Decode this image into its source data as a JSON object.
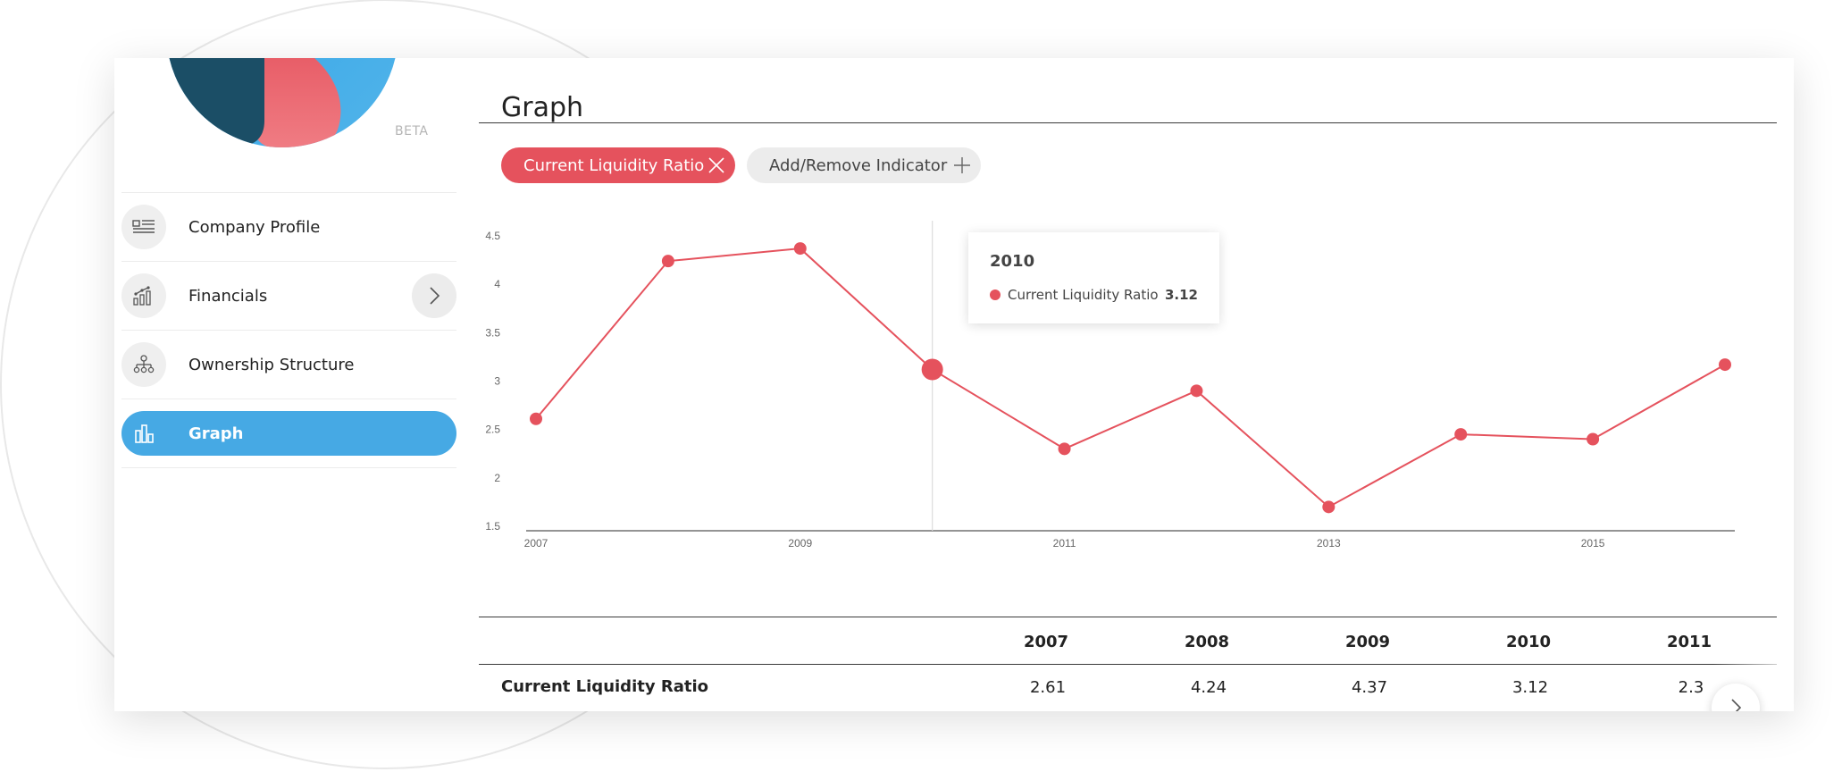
{
  "logo": {
    "badge": "BETA"
  },
  "nav": {
    "items": [
      {
        "label": "Company Profile",
        "icon": "profile-list-icon"
      },
      {
        "label": "Financials",
        "icon": "financials-chart-icon",
        "has_arrow": true
      },
      {
        "label": "Ownership Structure",
        "icon": "ownership-tree-icon"
      },
      {
        "label": "Graph",
        "icon": "bar-graph-icon",
        "active": true
      }
    ]
  },
  "page": {
    "title": "Graph"
  },
  "indicators": {
    "active_label": "Current Liquidity Ratio",
    "add_label": "Add/Remove Indicator"
  },
  "chart_data": {
    "type": "line",
    "x": [
      2007,
      2008,
      2009,
      2010,
      2011,
      2012,
      2013,
      2014,
      2015,
      2016
    ],
    "series": [
      {
        "name": "Current Liquidity Ratio",
        "values": [
          2.61,
          4.24,
          4.37,
          3.12,
          2.3,
          2.9,
          1.7,
          2.45,
          2.4,
          3.17
        ]
      }
    ],
    "x_tick_labels": [
      "2007",
      "2009",
      "2011",
      "2013",
      "2015"
    ],
    "y_ticks": [
      "4.5",
      "4",
      "3.5",
      "3",
      "2.5",
      "2",
      "1.5"
    ],
    "ylim": [
      1.5,
      4.5
    ],
    "grid": false,
    "color": "#e5525d",
    "highlight_x": 2010
  },
  "tooltip": {
    "year": "2010",
    "series_name": "Current Liquidity Ratio",
    "value": "3.12"
  },
  "table": {
    "columns": [
      "2007",
      "2008",
      "2009",
      "2010",
      "2011"
    ],
    "rows": [
      {
        "label": "Current Liquidity Ratio",
        "values": [
          "2.61",
          "4.24",
          "4.37",
          "3.12",
          "2.3"
        ]
      }
    ]
  },
  "colors": {
    "accent": "#e5525d",
    "active_nav": "#46a9e4",
    "chip_inactive": "#ececec"
  }
}
